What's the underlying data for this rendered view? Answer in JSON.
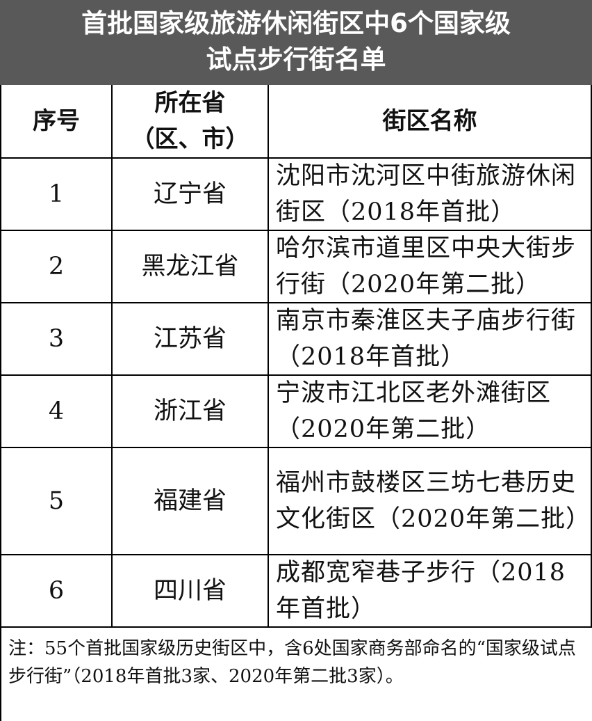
{
  "title": [
    "首批国家级旅游休闲街区中6个国家级",
    "试点步行街名单"
  ],
  "table": {
    "header": [
      "序号",
      [
        "所在省",
        "（区、市）"
      ],
      "街区名称"
    ],
    "rows": [
      [
        "1",
        "辽宁省",
        "沈阳市沈河区中街旅游休闲街区（2018年首批）"
      ],
      [
        "2",
        "黑龙江省",
        "哈尔滨市道里区中央大街步行街（2020年第二批）"
      ],
      [
        "3",
        "江苏省",
        "南京市秦淮区夫子庙步行街（2018年首批）"
      ],
      [
        "4",
        "浙江省",
        "宁波市江北区老外滩街区（2020年第二批）"
      ],
      [
        "5",
        "福建省",
        "福州市鼓楼区三坊七巷历史文化街区（2020年第二批）"
      ],
      [
        "6",
        "四川省",
        "成都宽窄巷子步行（2018年首批）"
      ]
    ],
    "note": "注：55个首批国家级历史街区中，含6处国家商务部命名的“国家级试点步行街”（2018年首批3家、2020年第二批3家）。"
  }
}
